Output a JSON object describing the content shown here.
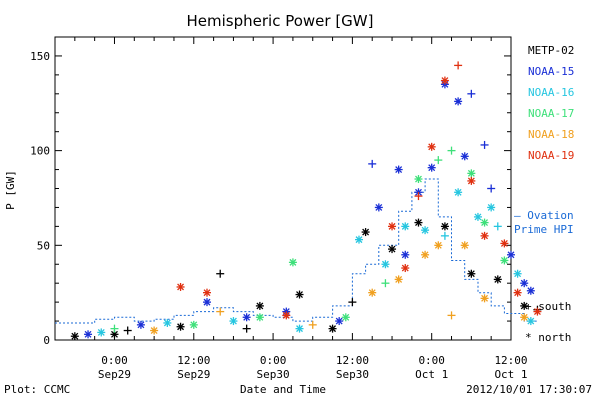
{
  "chart_data": {
    "type": "scatter",
    "title": "Hemispheric Power [GW]",
    "xlabel": "Date and Time",
    "ylabel": "P [GW]",
    "ylim": [
      0,
      160
    ],
    "xlim_hours": [
      -9,
      60
    ],
    "y_ticks": [
      0,
      50,
      100,
      150
    ],
    "x_ticks": [
      {
        "hour": 0,
        "time": "0:00",
        "date": "Sep29"
      },
      {
        "hour": 12,
        "time": "12:00",
        "date": "Sep29"
      },
      {
        "hour": 24,
        "time": "0:00",
        "date": "Sep30"
      },
      {
        "hour": 36,
        "time": "12:00",
        "date": "Sep30"
      },
      {
        "hour": 48,
        "time": "0:00",
        "date": "Oct 1"
      },
      {
        "hour": 60,
        "time": "12:00",
        "date": "Oct 1"
      }
    ],
    "legend": [
      {
        "name": "METP-02",
        "color": "#000000"
      },
      {
        "name": "NOAA-15",
        "color": "#1a2fd6"
      },
      {
        "name": "NOAA-16",
        "color": "#26c6e0"
      },
      {
        "name": "NOAA-17",
        "color": "#3ee07a"
      },
      {
        "name": "NOAA-18",
        "color": "#f0a020"
      },
      {
        "name": "NOAA-19",
        "color": "#e03010"
      }
    ],
    "ovation_label": [
      "— Ovation",
      "Prime HPI"
    ],
    "ovation_color": "#1a6ad6",
    "marker_legend": [
      {
        "symbol": "+",
        "label": "south"
      },
      {
        "symbol": "*",
        "label": "north"
      }
    ],
    "ovation_series": [
      [
        -9,
        9
      ],
      [
        -3,
        9
      ],
      [
        -3,
        11
      ],
      [
        0,
        11
      ],
      [
        0,
        12
      ],
      [
        3,
        12
      ],
      [
        3,
        10
      ],
      [
        6,
        10
      ],
      [
        6,
        11
      ],
      [
        9,
        11
      ],
      [
        9,
        13
      ],
      [
        12,
        13
      ],
      [
        12,
        15
      ],
      [
        15,
        15
      ],
      [
        15,
        17
      ],
      [
        18,
        17
      ],
      [
        18,
        15
      ],
      [
        21,
        15
      ],
      [
        21,
        13
      ],
      [
        24,
        13
      ],
      [
        24,
        12
      ],
      [
        27,
        12
      ],
      [
        27,
        10
      ],
      [
        30,
        10
      ],
      [
        30,
        12
      ],
      [
        33,
        12
      ],
      [
        33,
        18
      ],
      [
        36,
        18
      ],
      [
        36,
        35
      ],
      [
        38,
        35
      ],
      [
        38,
        40
      ],
      [
        40,
        40
      ],
      [
        40,
        50
      ],
      [
        43,
        50
      ],
      [
        43,
        68
      ],
      [
        45,
        68
      ],
      [
        45,
        78
      ],
      [
        47,
        78
      ],
      [
        47,
        85
      ],
      [
        49,
        85
      ],
      [
        49,
        65
      ],
      [
        51,
        65
      ],
      [
        51,
        42
      ],
      [
        53,
        42
      ],
      [
        53,
        32
      ],
      [
        55,
        32
      ],
      [
        55,
        25
      ],
      [
        57,
        25
      ],
      [
        57,
        18
      ],
      [
        59,
        18
      ],
      [
        59,
        14
      ],
      [
        62,
        14
      ],
      [
        62,
        10
      ],
      [
        64,
        10
      ]
    ],
    "points": [
      {
        "s": 0,
        "h": -6,
        "y": 2,
        "m": "*"
      },
      {
        "s": 0,
        "h": 2,
        "y": 5,
        "m": "+"
      },
      {
        "s": 0,
        "h": 10,
        "y": 7,
        "m": "*"
      },
      {
        "s": 0,
        "h": 16,
        "y": 35,
        "m": "+"
      },
      {
        "s": 0,
        "h": 22,
        "y": 18,
        "m": "*"
      },
      {
        "s": 0,
        "h": 28,
        "y": 24,
        "m": "*"
      },
      {
        "s": 0,
        "h": 36,
        "y": 20,
        "m": "+"
      },
      {
        "s": 0,
        "h": 38,
        "y": 57,
        "m": "*"
      },
      {
        "s": 0,
        "h": 42,
        "y": 48,
        "m": "*"
      },
      {
        "s": 0,
        "h": 46,
        "y": 62,
        "m": "*"
      },
      {
        "s": 0,
        "h": 50,
        "y": 60,
        "m": "*"
      },
      {
        "s": 0,
        "h": 54,
        "y": 35,
        "m": "*"
      },
      {
        "s": 0,
        "h": 58,
        "y": 32,
        "m": "*"
      },
      {
        "s": 0,
        "h": 62,
        "y": 18,
        "m": "*"
      },
      {
        "s": 0,
        "h": 64,
        "y": 16,
        "m": "+"
      },
      {
        "s": 0,
        "h": 0,
        "y": 3,
        "m": "*"
      },
      {
        "s": 0,
        "h": 20,
        "y": 6,
        "m": "+"
      },
      {
        "s": 0,
        "h": 33,
        "y": 6,
        "m": "*"
      },
      {
        "s": 1,
        "h": -4,
        "y": 3,
        "m": "*"
      },
      {
        "s": 1,
        "h": 4,
        "y": 8,
        "m": "*"
      },
      {
        "s": 1,
        "h": 14,
        "y": 20,
        "m": "*"
      },
      {
        "s": 1,
        "h": 20,
        "y": 12,
        "m": "*"
      },
      {
        "s": 1,
        "h": 26,
        "y": 15,
        "m": "*"
      },
      {
        "s": 1,
        "h": 34,
        "y": 10,
        "m": "*"
      },
      {
        "s": 1,
        "h": 39,
        "y": 93,
        "m": "+"
      },
      {
        "s": 1,
        "h": 40,
        "y": 70,
        "m": "*"
      },
      {
        "s": 1,
        "h": 43,
        "y": 90,
        "m": "*"
      },
      {
        "s": 1,
        "h": 46,
        "y": 78,
        "m": "*"
      },
      {
        "s": 1,
        "h": 48,
        "y": 91,
        "m": "*"
      },
      {
        "s": 1,
        "h": 50,
        "y": 135,
        "m": "*"
      },
      {
        "s": 1,
        "h": 52,
        "y": 126,
        "m": "*"
      },
      {
        "s": 1,
        "h": 53,
        "y": 97,
        "m": "*"
      },
      {
        "s": 1,
        "h": 54,
        "y": 130,
        "m": "+"
      },
      {
        "s": 1,
        "h": 56,
        "y": 103,
        "m": "+"
      },
      {
        "s": 1,
        "h": 57,
        "y": 80,
        "m": "+"
      },
      {
        "s": 1,
        "h": 60,
        "y": 45,
        "m": "*"
      },
      {
        "s": 1,
        "h": 62,
        "y": 30,
        "m": "*"
      },
      {
        "s": 1,
        "h": 63,
        "y": 26,
        "m": "*"
      },
      {
        "s": 1,
        "h": 44,
        "y": 45,
        "m": "*"
      },
      {
        "s": 2,
        "h": -2,
        "y": 4,
        "m": "*"
      },
      {
        "s": 2,
        "h": 8,
        "y": 9,
        "m": "*"
      },
      {
        "s": 2,
        "h": 18,
        "y": 10,
        "m": "*"
      },
      {
        "s": 2,
        "h": 28,
        "y": 6,
        "m": "*"
      },
      {
        "s": 2,
        "h": 37,
        "y": 53,
        "m": "*"
      },
      {
        "s": 2,
        "h": 41,
        "y": 40,
        "m": "*"
      },
      {
        "s": 2,
        "h": 44,
        "y": 60,
        "m": "*"
      },
      {
        "s": 2,
        "h": 47,
        "y": 58,
        "m": "*"
      },
      {
        "s": 2,
        "h": 50,
        "y": 55,
        "m": "+"
      },
      {
        "s": 2,
        "h": 52,
        "y": 78,
        "m": "*"
      },
      {
        "s": 2,
        "h": 55,
        "y": 65,
        "m": "*"
      },
      {
        "s": 2,
        "h": 57,
        "y": 70,
        "m": "*"
      },
      {
        "s": 2,
        "h": 58,
        "y": 60,
        "m": "+"
      },
      {
        "s": 2,
        "h": 61,
        "y": 35,
        "m": "*"
      },
      {
        "s": 2,
        "h": 63,
        "y": 10,
        "m": "*"
      },
      {
        "s": 3,
        "h": 0,
        "y": 6,
        "m": "+"
      },
      {
        "s": 3,
        "h": 12,
        "y": 8,
        "m": "*"
      },
      {
        "s": 3,
        "h": 22,
        "y": 12,
        "m": "*"
      },
      {
        "s": 3,
        "h": 27,
        "y": 41,
        "m": "*"
      },
      {
        "s": 3,
        "h": 35,
        "y": 12,
        "m": "*"
      },
      {
        "s": 3,
        "h": 41,
        "y": 30,
        "m": "+"
      },
      {
        "s": 3,
        "h": 46,
        "y": 85,
        "m": "*"
      },
      {
        "s": 3,
        "h": 49,
        "y": 95,
        "m": "+"
      },
      {
        "s": 3,
        "h": 51,
        "y": 100,
        "m": "+"
      },
      {
        "s": 3,
        "h": 54,
        "y": 88,
        "m": "*"
      },
      {
        "s": 3,
        "h": 56,
        "y": 62,
        "m": "*"
      },
      {
        "s": 3,
        "h": 59,
        "y": 42,
        "m": "*"
      },
      {
        "s": 4,
        "h": 6,
        "y": 5,
        "m": "*"
      },
      {
        "s": 4,
        "h": 16,
        "y": 15,
        "m": "+"
      },
      {
        "s": 4,
        "h": 30,
        "y": 8,
        "m": "+"
      },
      {
        "s": 4,
        "h": 39,
        "y": 25,
        "m": "*"
      },
      {
        "s": 4,
        "h": 43,
        "y": 32,
        "m": "*"
      },
      {
        "s": 4,
        "h": 47,
        "y": 45,
        "m": "*"
      },
      {
        "s": 4,
        "h": 49,
        "y": 50,
        "m": "*"
      },
      {
        "s": 4,
        "h": 51,
        "y": 13,
        "m": "+"
      },
      {
        "s": 4,
        "h": 53,
        "y": 50,
        "m": "*"
      },
      {
        "s": 4,
        "h": 56,
        "y": 22,
        "m": "*"
      },
      {
        "s": 4,
        "h": 62,
        "y": 12,
        "m": "*"
      },
      {
        "s": 5,
        "h": 10,
        "y": 28,
        "m": "*"
      },
      {
        "s": 5,
        "h": 14,
        "y": 25,
        "m": "*"
      },
      {
        "s": 5,
        "h": 26,
        "y": 13,
        "m": "*"
      },
      {
        "s": 5,
        "h": 42,
        "y": 60,
        "m": "*"
      },
      {
        "s": 5,
        "h": 44,
        "y": 38,
        "m": "*"
      },
      {
        "s": 5,
        "h": 46,
        "y": 76,
        "m": "+"
      },
      {
        "s": 5,
        "h": 48,
        "y": 102,
        "m": "*"
      },
      {
        "s": 5,
        "h": 50,
        "y": 137,
        "m": "*"
      },
      {
        "s": 5,
        "h": 52,
        "y": 145,
        "m": "+"
      },
      {
        "s": 5,
        "h": 54,
        "y": 84,
        "m": "*"
      },
      {
        "s": 5,
        "h": 56,
        "y": 55,
        "m": "*"
      },
      {
        "s": 5,
        "h": 59,
        "y": 51,
        "m": "*"
      },
      {
        "s": 5,
        "h": 61,
        "y": 25,
        "m": "*"
      },
      {
        "s": 5,
        "h": 64,
        "y": 15,
        "m": "*"
      }
    ]
  },
  "footer": {
    "plot_credit": "Plot: CCMC",
    "timestamp": "2012/10/01 17:30:07"
  }
}
